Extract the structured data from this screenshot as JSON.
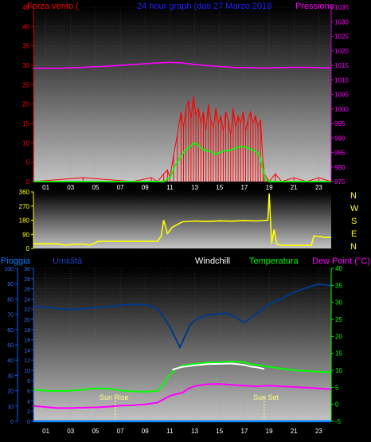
{
  "colors": {
    "wind": "#ff0000",
    "gust": "#ff0000",
    "wind_avg": "#00ff00",
    "pressure": "#ff00ff",
    "direction": "#ffff00",
    "humidity": "#003a8c",
    "temperature": "#00ff00",
    "windchill": "#ffffff",
    "dewpoint": "#ff00ff",
    "rain": "#0080ff",
    "sun": "#ffff80"
  },
  "chart_data": [
    {
      "type": "line",
      "title": "24 hour graph (dati 27 Marzo 2018",
      "left_label": "Forza vento (",
      "right_label": "Pressione",
      "x_ticks": [
        "01",
        "03",
        "05",
        "07",
        "09",
        "11",
        "13",
        "15",
        "17",
        "19",
        "21",
        "23"
      ],
      "y_left_ticks": [
        0,
        5,
        10,
        15,
        20,
        25,
        30,
        35,
        40,
        45
      ],
      "y_left_range": [
        0,
        45
      ],
      "y_right_ticks": [
        975,
        980,
        985,
        990,
        995,
        1000,
        1005,
        1010,
        1015,
        1020,
        1025,
        1030,
        1035
      ],
      "y_right_range": [
        975,
        1035
      ],
      "series": [
        {
          "key": "gust",
          "x": [
            0,
            4,
            8,
            9.5,
            10,
            10.5,
            10.8,
            11,
            11.3,
            11.6,
            11.9,
            12.1,
            12.3,
            12.5,
            12.7,
            12.9,
            13.1,
            13.3,
            13.5,
            13.7,
            13.9,
            14.1,
            14.3,
            14.5,
            14.7,
            14.9,
            15.1,
            15.3,
            15.5,
            15.7,
            15.9,
            16.1,
            16.3,
            16.5,
            16.7,
            16.9,
            17.1,
            17.3,
            17.5,
            17.7,
            17.9,
            18.1,
            18.3,
            18.5,
            18.6,
            19,
            19.5,
            20,
            21,
            22,
            23,
            24
          ],
          "y": [
            0,
            1,
            0,
            1,
            0,
            2,
            3,
            1,
            7,
            12,
            18,
            14,
            19,
            21,
            16,
            22,
            17,
            19,
            15,
            18,
            13,
            20,
            16,
            14,
            19,
            15,
            17,
            13,
            18,
            16,
            12,
            19,
            14,
            17,
            15,
            18,
            13,
            16,
            18,
            15,
            17,
            14,
            16,
            5,
            2,
            0,
            2,
            0,
            1,
            0,
            1,
            0
          ]
        },
        {
          "key": "wind_avg",
          "x": [
            0,
            10,
            10.5,
            11,
            11.4,
            11.8,
            12.2,
            12.6,
            13,
            13.4,
            13.8,
            14.2,
            14.6,
            15,
            15.4,
            15.8,
            16.2,
            16.6,
            17,
            17.4,
            17.8,
            18.2,
            18.5,
            18.7,
            19,
            24
          ],
          "y": [
            0,
            0,
            0,
            1,
            4,
            6,
            8,
            9,
            10,
            9,
            8,
            8,
            7,
            7.5,
            8,
            8,
            8.5,
            9,
            9,
            8.5,
            8,
            7,
            3,
            0.5,
            0,
            0
          ]
        },
        {
          "key": "pressure",
          "x": [
            0,
            2,
            4,
            6,
            8,
            10,
            11,
            12,
            13,
            14,
            15,
            16,
            17,
            18,
            19,
            20,
            21,
            22,
            23,
            24
          ],
          "y": [
            1014,
            1014,
            1014.3,
            1014.7,
            1015.3,
            1015.8,
            1016,
            1015.8,
            1015.3,
            1014.9,
            1014.6,
            1014.3,
            1014.2,
            1014.1,
            1014.1,
            1014.2,
            1014.3,
            1014.3,
            1014.2,
            1014.1
          ]
        }
      ]
    },
    {
      "type": "line",
      "y_ticks": [
        0,
        90,
        180,
        270,
        360
      ],
      "y_range": [
        0,
        360
      ],
      "compass_labels": [
        "N",
        "W",
        "S",
        "E",
        "N"
      ],
      "series": [
        {
          "key": "direction",
          "x": [
            0,
            2,
            2.6,
            3.2,
            4,
            4.6,
            5.2,
            8,
            9,
            10,
            10.3,
            10.5,
            10.8,
            11.2,
            12,
            13,
            14,
            15,
            16,
            17,
            18,
            18.9,
            19,
            19.2,
            19.4,
            19.6,
            19.9,
            20,
            21,
            22.4,
            22.6,
            23.2,
            23.4,
            24
          ],
          "y": [
            30,
            30,
            20,
            28,
            28,
            22,
            45,
            45,
            45,
            45,
            80,
            180,
            95,
            135,
            170,
            175,
            172,
            176,
            174,
            178,
            175,
            180,
            350,
            30,
            120,
            30,
            20,
            20,
            20,
            20,
            80,
            75,
            70,
            70
          ]
        }
      ]
    },
    {
      "type": "line",
      "labels": {
        "rain": "Pioggia",
        "humidity": "Umidità",
        "windchill": "Windchill",
        "temperature": "Temperatura",
        "dewpoint": "Dew Point (°C)",
        "sunrise": "Sun Rise",
        "sunset": "Sun Set"
      },
      "x_ticks": [
        "01",
        "03",
        "05",
        "07",
        "09",
        "11",
        "13",
        "15",
        "17",
        "19",
        "21",
        "23"
      ],
      "rain_ticks": [
        0,
        10,
        20,
        30,
        40,
        50,
        60,
        70,
        80,
        90,
        100
      ],
      "humidity_ticks": [
        0,
        2,
        4,
        6,
        8,
        10,
        12,
        14,
        16,
        18,
        20,
        22,
        24,
        26,
        28,
        30
      ],
      "temp_ticks": [
        -5,
        0,
        5,
        10,
        15,
        20,
        25,
        30,
        35,
        40
      ],
      "temp_range": [
        -5,
        40
      ],
      "sunrise_x": 6.6,
      "sunset_x": 18.6,
      "series": [
        {
          "key": "humidity",
          "x": [
            0,
            1,
            2,
            3,
            4,
            5,
            6,
            7,
            8,
            9,
            9.5,
            10,
            10.5,
            11,
            11.3,
            11.6,
            11.8,
            12,
            12.3,
            12.6,
            13,
            13.5,
            14,
            15,
            15.5,
            16,
            16.5,
            16.8,
            17,
            17.5,
            18,
            18.5,
            19,
            20,
            21,
            22,
            23,
            24
          ],
          "y": [
            22.5,
            22.4,
            22.1,
            21.9,
            22.1,
            22.3,
            22.5,
            22.8,
            22.9,
            22.9,
            22.6,
            22,
            20.5,
            18.5,
            17,
            15.6,
            14.5,
            15.5,
            17.2,
            18.8,
            19.8,
            20.4,
            20.8,
            21.1,
            21.2,
            20.8,
            20.1,
            19.5,
            19.4,
            20.2,
            21.2,
            22.1,
            23,
            24.1,
            25.3,
            26.2,
            26.9,
            26.6
          ]
        },
        {
          "key": "temperature",
          "x": [
            0,
            1,
            2,
            3,
            4,
            5,
            6,
            7,
            8,
            9,
            10,
            10.5,
            11,
            11.5,
            12,
            13,
            14,
            15,
            16,
            17,
            17.5,
            18,
            19,
            20,
            21,
            22,
            23,
            24
          ],
          "y": [
            4.3,
            4,
            3.9,
            4,
            4.3,
            4.7,
            4.6,
            4.1,
            3.8,
            3.7,
            3.9,
            6,
            8.8,
            10.4,
            11.4,
            11.9,
            12.3,
            12.4,
            12.6,
            12.4,
            11.8,
            11.6,
            11,
            10.5,
            10,
            9.8,
            9.6,
            9.4
          ]
        },
        {
          "key": "windchill",
          "x": [
            11.2,
            12,
            13,
            14,
            15,
            16,
            17,
            17.5,
            18,
            18.6
          ],
          "y": [
            10.2,
            11,
            11.5,
            11.8,
            11.9,
            12,
            11.6,
            11.1,
            10.9,
            10.4
          ]
        },
        {
          "key": "dewpoint",
          "x": [
            0,
            1,
            2,
            3,
            4,
            5,
            6,
            7,
            8,
            9,
            10,
            10.5,
            11,
            11.5,
            12,
            12.5,
            13,
            14,
            15,
            16,
            17,
            18,
            19,
            20,
            21,
            22,
            23,
            24
          ],
          "y": [
            -0.5,
            -0.8,
            -1.1,
            -1.1,
            -1,
            -0.9,
            -0.7,
            -0.4,
            -0.3,
            0,
            0.5,
            1.5,
            2.5,
            3,
            3.4,
            4.6,
            5.4,
            5.9,
            6,
            5.7,
            5.5,
            5.3,
            5.5,
            5.3,
            5.1,
            4.9,
            4.7,
            4.4
          ]
        },
        {
          "key": "rain",
          "x": [
            0,
            24
          ],
          "y": [
            0,
            0
          ]
        }
      ]
    }
  ]
}
